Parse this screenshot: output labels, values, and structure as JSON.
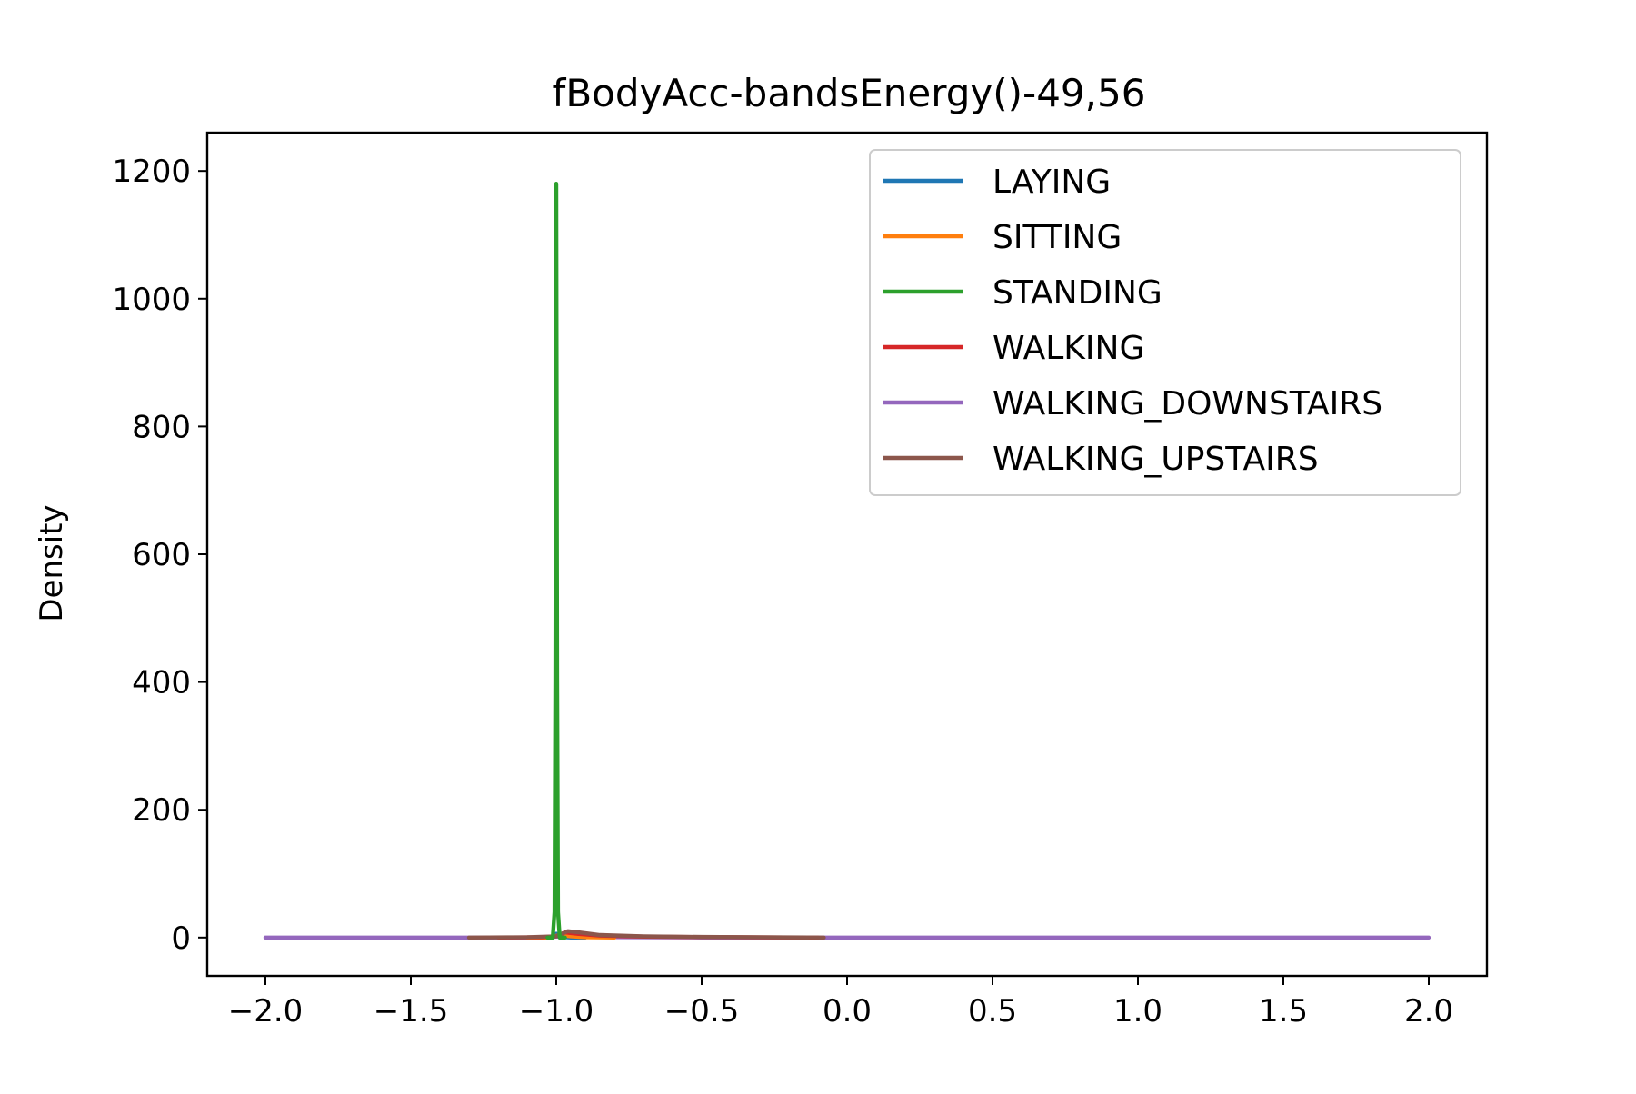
{
  "chart_data": {
    "type": "line",
    "title": "fBodyAcc-bandsEnergy()-49,56",
    "xlabel": "",
    "ylabel": "Density",
    "xlim": [
      -2.2,
      2.2
    ],
    "ylim": [
      -60,
      1260
    ],
    "xticks": [
      -2.0,
      -1.5,
      -1.0,
      -0.5,
      0.0,
      0.5,
      1.0,
      1.5,
      2.0
    ],
    "xtick_labels": [
      "−2.0",
      "−1.5",
      "−1.0",
      "−0.5",
      "0.0",
      "0.5",
      "1.0",
      "1.5",
      "2.0"
    ],
    "yticks": [
      0,
      200,
      400,
      600,
      800,
      1000,
      1200
    ],
    "ytick_labels": [
      "0",
      "200",
      "400",
      "600",
      "800",
      "1000",
      "1200"
    ],
    "grid": false,
    "legend_position": "top-right",
    "series": [
      {
        "name": "LAYING",
        "color": "#1f77b4",
        "points": [
          [
            -1.06,
            0
          ],
          [
            -1.02,
            0
          ],
          [
            -1.0,
            6
          ],
          [
            -0.98,
            1
          ],
          [
            -0.95,
            0
          ],
          [
            -0.9,
            0
          ]
        ]
      },
      {
        "name": "SITTING",
        "color": "#ff7f0e",
        "points": [
          [
            -1.1,
            0
          ],
          [
            -1.02,
            0
          ],
          [
            -0.99,
            4
          ],
          [
            -0.95,
            2
          ],
          [
            -0.9,
            0.5
          ],
          [
            -0.8,
            0
          ]
        ]
      },
      {
        "name": "STANDING",
        "color": "#2ca02c",
        "points": [
          [
            -1.03,
            0
          ],
          [
            -1.012,
            0
          ],
          [
            -1.006,
            40
          ],
          [
            -1.003,
            400
          ],
          [
            -1.0,
            1180
          ],
          [
            -0.997,
            400
          ],
          [
            -0.994,
            40
          ],
          [
            -0.988,
            0
          ],
          [
            -0.97,
            0
          ]
        ]
      },
      {
        "name": "WALKING",
        "color": "#d62728",
        "points": [
          [
            -1.2,
            0
          ],
          [
            -1.05,
            0.5
          ],
          [
            -1.0,
            2
          ],
          [
            -0.97,
            8
          ],
          [
            -0.93,
            6
          ],
          [
            -0.85,
            3
          ],
          [
            -0.7,
            1.5
          ],
          [
            -0.5,
            0.8
          ],
          [
            -0.3,
            0.3
          ],
          [
            -0.1,
            0
          ]
        ]
      },
      {
        "name": "WALKING_DOWNSTAIRS",
        "color": "#9467bd",
        "points": [
          [
            -2.0,
            0
          ],
          [
            -1.5,
            0
          ],
          [
            -1.02,
            0
          ],
          [
            -1.0,
            1.5
          ],
          [
            -0.95,
            1
          ],
          [
            -0.5,
            0.1
          ],
          [
            0.0,
            0
          ],
          [
            1.0,
            0
          ],
          [
            2.0,
            0
          ]
        ]
      },
      {
        "name": "WALKING_UPSTAIRS",
        "color": "#8c564b",
        "points": [
          [
            -1.3,
            0
          ],
          [
            -1.1,
            0.5
          ],
          [
            -1.0,
            2
          ],
          [
            -0.96,
            10
          ],
          [
            -0.92,
            8
          ],
          [
            -0.85,
            4
          ],
          [
            -0.7,
            2
          ],
          [
            -0.5,
            1
          ],
          [
            -0.3,
            0.5
          ],
          [
            -0.08,
            0
          ]
        ]
      }
    ]
  }
}
